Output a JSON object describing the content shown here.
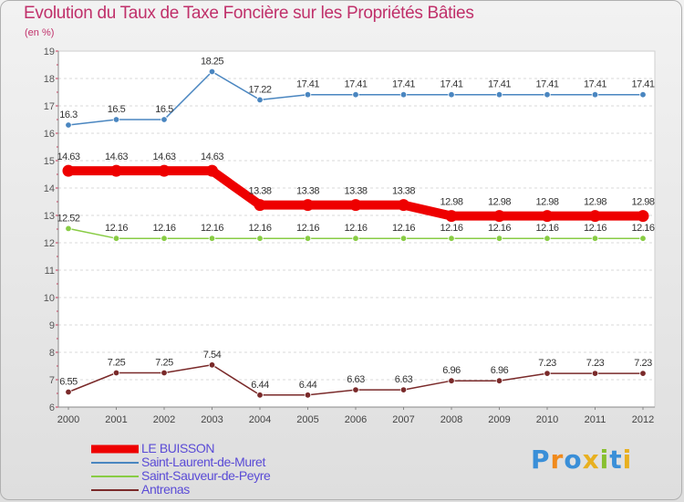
{
  "chart_data": {
    "type": "line",
    "title": "Evolution du Taux de Taxe Foncière sur les Propriétés Bâties",
    "ylabel": "(en %)",
    "categories": [
      "2000",
      "2001",
      "2002",
      "2003",
      "2004",
      "2005",
      "2006",
      "2007",
      "2008",
      "2009",
      "2010",
      "2011",
      "2012"
    ],
    "ylim": [
      6,
      19
    ],
    "yticks": [
      "6",
      "7",
      "8",
      "9",
      "10",
      "11",
      "12",
      "13",
      "14",
      "15",
      "16",
      "17",
      "18",
      "19"
    ],
    "grid": "horizontal-dashed",
    "legend_position": "bottom-left",
    "series": [
      {
        "name": "Saint-Laurent-de-Muret",
        "color": "#4a86c0",
        "values": [
          16.3,
          16.5,
          16.5,
          18.25,
          17.22,
          17.41,
          17.41,
          17.41,
          17.41,
          17.41,
          17.41,
          17.41,
          17.41
        ],
        "labels": [
          "16.3",
          "16.5",
          "16.5",
          "18.25",
          "17.22",
          "17.41",
          "17.41",
          "17.41",
          "17.41",
          "17.41",
          "17.41",
          "17.41",
          "17.41"
        ]
      },
      {
        "name": "LE BUISSON",
        "color": "#ee0000",
        "values": [
          14.63,
          14.63,
          14.63,
          14.63,
          13.38,
          13.38,
          13.38,
          13.38,
          12.98,
          12.98,
          12.98,
          12.98,
          12.98
        ],
        "labels": [
          "14.63",
          "14.63",
          "14.63",
          "14.63",
          "13.38",
          "13.38",
          "13.38",
          "13.38",
          "12.98",
          "12.98",
          "12.98",
          "12.98",
          "12.98"
        ]
      },
      {
        "name": "Saint-Sauveur-de-Peyre",
        "color": "#88cc44",
        "values": [
          12.52,
          12.16,
          12.16,
          12.16,
          12.16,
          12.16,
          12.16,
          12.16,
          12.16,
          12.16,
          12.16,
          12.16,
          12.16
        ],
        "labels": [
          "12.52",
          "12.16",
          "12.16",
          "12.16",
          "12.16",
          "12.16",
          "12.16",
          "12.16",
          "12.16",
          "12.16",
          "12.16",
          "12.16",
          "12.16"
        ]
      },
      {
        "name": "Antrenas",
        "color": "#7a2a2a",
        "values": [
          6.55,
          7.25,
          7.25,
          7.54,
          6.44,
          6.44,
          6.63,
          6.63,
          6.96,
          6.96,
          7.23,
          7.23,
          7.23
        ],
        "labels": [
          "6.55",
          "7.25",
          "7.25",
          "7.54",
          "6.44",
          "6.44",
          "6.63",
          "6.63",
          "6.96",
          "6.96",
          "7.23",
          "7.23",
          "7.23"
        ]
      }
    ]
  },
  "legend": [
    {
      "label": "LE BUISSON",
      "color": "#ee0000"
    },
    {
      "label": "Saint-Laurent-de-Muret",
      "color": "#4a86c0"
    },
    {
      "label": "Saint-Sauveur-de-Peyre",
      "color": "#88cc44"
    },
    {
      "label": "Antrenas",
      "color": "#7a2a2a"
    }
  ],
  "logo": {
    "letters": [
      "P",
      "r",
      "o",
      "x",
      "i",
      "t",
      "i"
    ],
    "colors": [
      "#3a8fd8",
      "#f08a1c",
      "#3a8fd8",
      "#e8b020",
      "#88c030",
      "#3a8fd8",
      "#e8b020"
    ]
  }
}
